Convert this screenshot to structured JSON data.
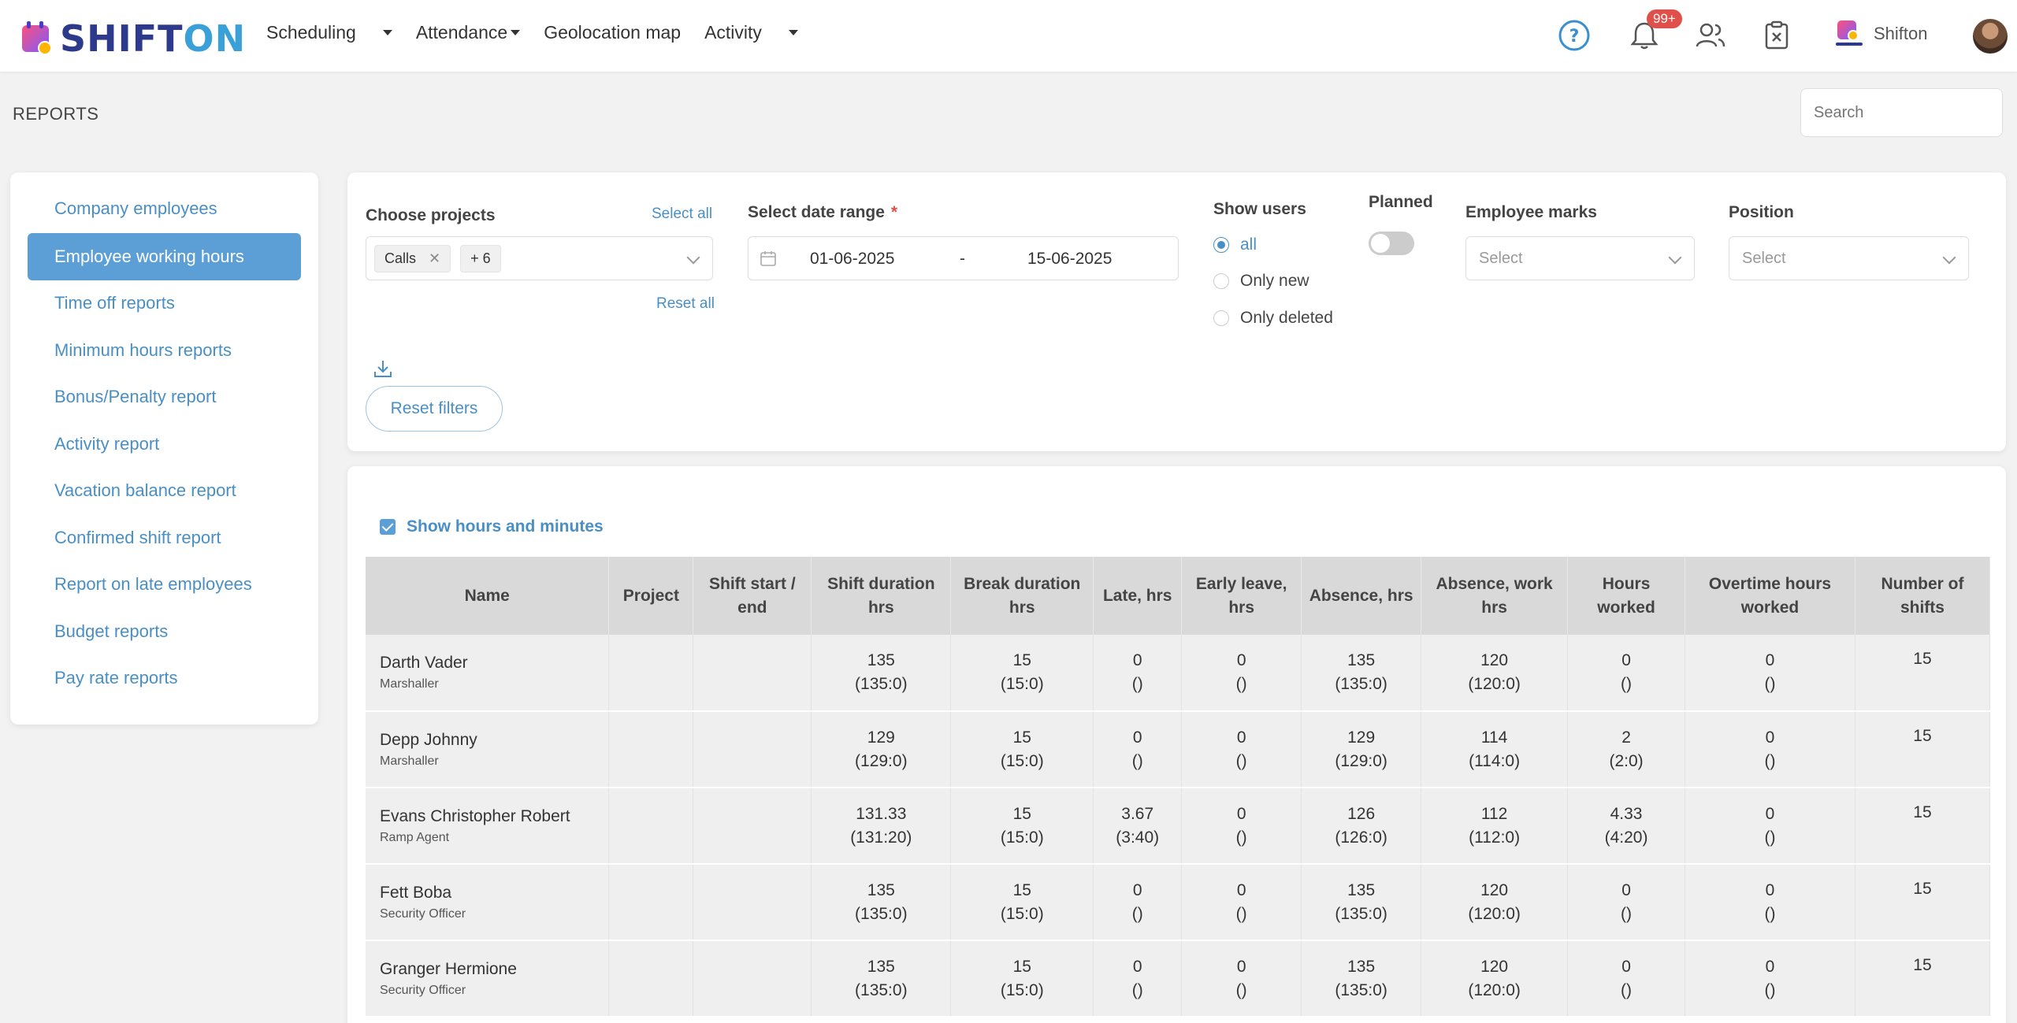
{
  "brand": {
    "logo_left": "SHIFT",
    "logo_right": "ON"
  },
  "nav": [
    {
      "label": "Scheduling"
    },
    {
      "label": "Attendance"
    },
    {
      "label": "Geolocation map"
    },
    {
      "label": "Activity"
    }
  ],
  "header": {
    "notifications_badge": "99+",
    "company_name": "Shifton"
  },
  "page": {
    "title": "REPORTS",
    "search_placeholder": "Search"
  },
  "sidebar": {
    "items": [
      {
        "label": "Company employees"
      },
      {
        "label": "Employee working hours"
      },
      {
        "label": "Time off reports"
      },
      {
        "label": "Minimum hours reports"
      },
      {
        "label": "Bonus/Penalty report"
      },
      {
        "label": "Activity report"
      },
      {
        "label": "Vacation balance report"
      },
      {
        "label": "Confirmed shift report"
      },
      {
        "label": "Report on late employees"
      },
      {
        "label": "Budget reports"
      },
      {
        "label": "Pay rate reports"
      }
    ]
  },
  "filters": {
    "projects": {
      "label": "Choose projects",
      "select_all": "Select all",
      "reset_all": "Reset all",
      "tag": "Calls",
      "more": "+ 6"
    },
    "date_range": {
      "label": "Select date range",
      "required_mark": "*",
      "from": "01-06-2025",
      "separator": "-",
      "to": "15-06-2025"
    },
    "show_users": {
      "label": "Show users",
      "options": [
        "all",
        "Only new",
        "Only deleted"
      ],
      "selected": "all"
    },
    "planned": {
      "label": "Planned",
      "enabled": false
    },
    "employee_marks": {
      "label": "Employee marks",
      "placeholder": "Select"
    },
    "position": {
      "label": "Position",
      "placeholder": "Select"
    },
    "reset_filters": "Reset filters"
  },
  "table": {
    "show_hours_minutes": {
      "label": "Show hours and minutes",
      "checked": true
    },
    "columns": [
      "Name",
      "Project",
      "Shift start / end",
      "Shift duration hrs",
      "Break duration hrs",
      "Late, hrs",
      "Early leave, hrs",
      "Absence, hrs",
      "Absence, work hrs",
      "Hours worked",
      "Overtime hours worked",
      "Number of shifts"
    ],
    "rows": [
      {
        "name": "Darth Vader",
        "role": "Marshaller",
        "project": "",
        "shift": "",
        "shift_duration": [
          "135",
          "(135:0)"
        ],
        "break_duration": [
          "15",
          "(15:0)"
        ],
        "late": [
          "0",
          "()"
        ],
        "early_leave": [
          "0",
          "()"
        ],
        "absence": [
          "135",
          "(135:0)"
        ],
        "absence_work": [
          "120",
          "(120:0)"
        ],
        "hours_worked": [
          "0",
          "()"
        ],
        "overtime": [
          "0",
          "()"
        ],
        "shifts": "15"
      },
      {
        "name": "Depp Johnny",
        "role": "Marshaller",
        "project": "",
        "shift": "",
        "shift_duration": [
          "129",
          "(129:0)"
        ],
        "break_duration": [
          "15",
          "(15:0)"
        ],
        "late": [
          "0",
          "()"
        ],
        "early_leave": [
          "0",
          "()"
        ],
        "absence": [
          "129",
          "(129:0)"
        ],
        "absence_work": [
          "114",
          "(114:0)"
        ],
        "hours_worked": [
          "2",
          "(2:0)"
        ],
        "overtime": [
          "0",
          "()"
        ],
        "shifts": "15"
      },
      {
        "name": "Evans Christopher Robert",
        "role": "Ramp Agent",
        "project": "",
        "shift": "",
        "shift_duration": [
          "131.33",
          "(131:20)"
        ],
        "break_duration": [
          "15",
          "(15:0)"
        ],
        "late": [
          "3.67",
          "(3:40)"
        ],
        "early_leave": [
          "0",
          "()"
        ],
        "absence": [
          "126",
          "(126:0)"
        ],
        "absence_work": [
          "112",
          "(112:0)"
        ],
        "hours_worked": [
          "4.33",
          "(4:20)"
        ],
        "overtime": [
          "0",
          "()"
        ],
        "shifts": "15"
      },
      {
        "name": "Fett Boba",
        "role": "Security Officer",
        "project": "",
        "shift": "",
        "shift_duration": [
          "135",
          "(135:0)"
        ],
        "break_duration": [
          "15",
          "(15:0)"
        ],
        "late": [
          "0",
          "()"
        ],
        "early_leave": [
          "0",
          "()"
        ],
        "absence": [
          "135",
          "(135:0)"
        ],
        "absence_work": [
          "120",
          "(120:0)"
        ],
        "hours_worked": [
          "0",
          "()"
        ],
        "overtime": [
          "0",
          "()"
        ],
        "shifts": "15"
      },
      {
        "name": "Granger Hermione",
        "role": "Security Officer",
        "project": "",
        "shift": "",
        "shift_duration": [
          "135",
          "(135:0)"
        ],
        "break_duration": [
          "15",
          "(15:0)"
        ],
        "late": [
          "0",
          "()"
        ],
        "early_leave": [
          "0",
          "()"
        ],
        "absence": [
          "135",
          "(135:0)"
        ],
        "absence_work": [
          "120",
          "(120:0)"
        ],
        "hours_worked": [
          "0",
          "()"
        ],
        "overtime": [
          "0",
          "()"
        ],
        "shifts": "15"
      }
    ]
  },
  "colors": {
    "accent": "#5b9fd6",
    "link": "#4a8fc4",
    "badge": "#e0504a",
    "brand_dark": "#2d3a8c",
    "brand_light": "#3aa0d8"
  },
  "icons": [
    "help-icon",
    "bell-icon",
    "users-icon",
    "clipboard-icon",
    "calendar-icon",
    "download-icon",
    "chevron-down-icon",
    "close-icon"
  ]
}
